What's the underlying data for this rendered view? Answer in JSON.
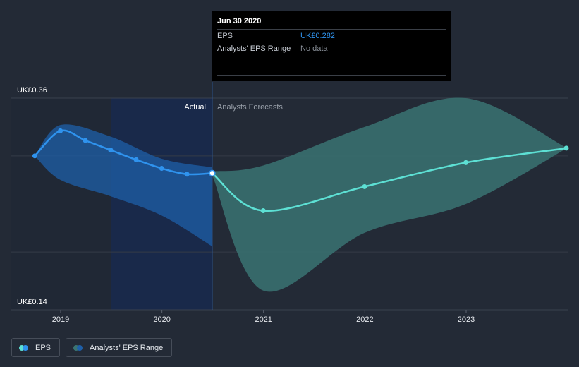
{
  "chart_data": {
    "type": "line",
    "y_axis": {
      "min_label": "UK£0.14",
      "max_label": "UK£0.36",
      "ylim": [
        0.14,
        0.36
      ]
    },
    "x_ticks": [
      "2019",
      "2020",
      "2021",
      "2022",
      "2023"
    ],
    "region_labels": {
      "actual": "Actual",
      "forecast": "Analysts Forecasts"
    },
    "colors": {
      "eps_actual": "#2f93ee",
      "eps_forecast": "#5de0d4",
      "range_actual": "#1e5fa8",
      "range_forecast": "#3a7372",
      "highlight_band": "#19294a"
    },
    "series": [
      {
        "name": "EPS",
        "actual": [
          [
            "2018-09-30",
            0.3
          ],
          [
            "2018-12-31",
            0.326
          ],
          [
            "2019-03-31",
            0.316
          ],
          [
            "2019-06-30",
            0.306
          ],
          [
            "2019-09-30",
            0.296
          ],
          [
            "2019-12-31",
            0.287
          ],
          [
            "2020-03-31",
            0.281
          ],
          [
            "2020-06-30",
            0.282
          ]
        ],
        "forecast": [
          [
            "2020-06-30",
            0.282
          ],
          [
            "2020-12-31",
            0.243
          ],
          [
            "2021-12-31",
            0.268
          ],
          [
            "2022-12-31",
            0.293
          ],
          [
            "2023-12-31",
            0.308
          ]
        ]
      },
      {
        "name": "Analysts' EPS Range",
        "actual_high": [
          [
            "2018-09-30",
            0.3
          ],
          [
            "2018-12-31",
            0.332
          ],
          [
            "2019-06-30",
            0.32
          ],
          [
            "2019-12-31",
            0.297
          ],
          [
            "2020-06-30",
            0.288
          ]
        ],
        "actual_low": [
          [
            "2018-09-30",
            0.3
          ],
          [
            "2018-12-31",
            0.275
          ],
          [
            "2019-06-30",
            0.258
          ],
          [
            "2019-12-31",
            0.238
          ],
          [
            "2020-06-30",
            0.206
          ]
        ],
        "forecast_high": [
          [
            "2020-06-30",
            0.284
          ],
          [
            "2020-12-31",
            0.29
          ],
          [
            "2021-12-31",
            0.33
          ],
          [
            "2022-12-31",
            0.36
          ],
          [
            "2023-12-31",
            0.308
          ]
        ],
        "forecast_low": [
          [
            "2020-06-30",
            0.28
          ],
          [
            "2020-12-31",
            0.16
          ],
          [
            "2021-12-31",
            0.22
          ],
          [
            "2022-12-31",
            0.25
          ],
          [
            "2023-12-31",
            0.308
          ]
        ]
      }
    ]
  },
  "tooltip": {
    "date": "Jun 30 2020",
    "eps_label": "EPS",
    "eps_value": "UK£0.282",
    "range_label": "Analysts' EPS Range",
    "range_value": "No data"
  },
  "legend": {
    "eps_label": "EPS",
    "range_label": "Analysts' EPS Range"
  }
}
